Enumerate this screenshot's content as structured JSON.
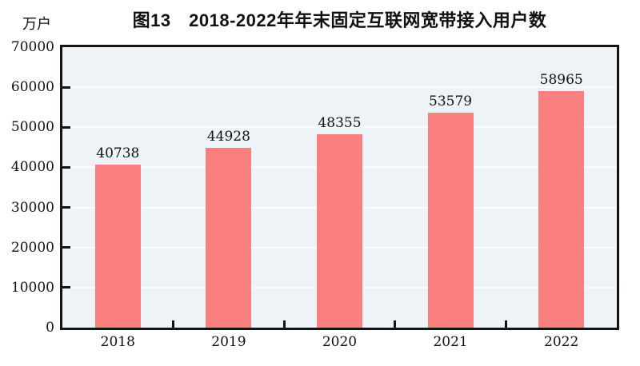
{
  "chart_data": {
    "type": "bar",
    "title": "图13　2018-2022年年末固定互联网宽带接入用户数",
    "unit_label": "万户",
    "categories": [
      "2018",
      "2019",
      "2020",
      "2021",
      "2022"
    ],
    "values": [
      40738,
      44928,
      48355,
      53579,
      58965
    ],
    "data_labels": [
      "40738",
      "44928",
      "48355",
      "53579",
      "58965"
    ],
    "ylim": [
      0,
      70000
    ],
    "ytick_step": 10000,
    "ytick_labels": [
      "0",
      "10000",
      "20000",
      "30000",
      "40000",
      "50000",
      "60000",
      "70000"
    ],
    "legend": "none",
    "grid": "horizontal",
    "colors": {
      "bar_fill": "#fa8080",
      "plot_background": "#edf3f6",
      "gridline": "#f9fcfd",
      "axis_frame": "#141414",
      "text": "#111111"
    }
  }
}
